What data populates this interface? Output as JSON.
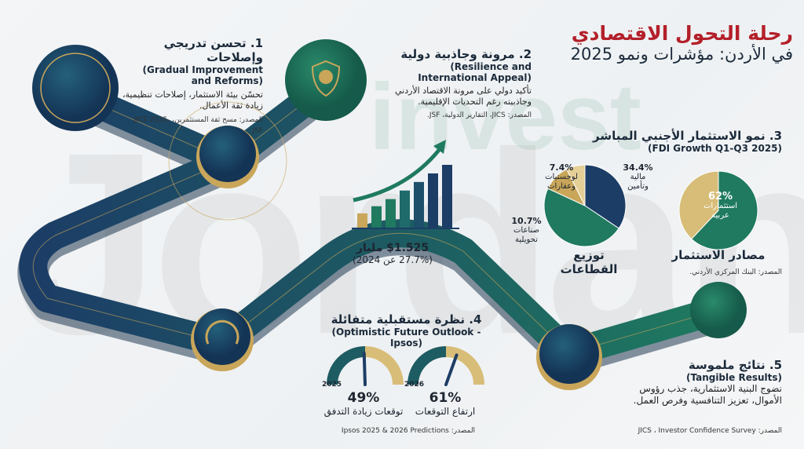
{
  "watermark": {
    "logo_text": "Jordan",
    "sub_text": "invest"
  },
  "title": {
    "line1": "رحلة التحول الاقتصادي",
    "line2": "في الأردن: مؤشرات ونمو 2025"
  },
  "colors": {
    "navy": "#1c3d66",
    "green": "#1f7a5f",
    "gold": "#c9a65a",
    "light_gold": "#e4cf96",
    "red": "#b3202a"
  },
  "steps": [
    {
      "heading": "1. تحسن تدريجي وإصلاحات",
      "english": "(Gradual Improvement and Reforms)",
      "body": "تحسّن بيئة الاستثمار، إصلاحات تنظيمية، زيادة ثقة الأعمال.",
      "source": "المصدر: مسح ثقة المستثمرين، JICS 2025، JSF.",
      "icon": "gears-arrow-icon"
    },
    {
      "heading": "2. مرونة وجاذبية دولية",
      "english": "(Resilience and International Appeal)",
      "body": "تأكيد دولي على مرونة الاقتصاد الأردني وجاذبيته رغم التحديات الإقليمية.",
      "source": "المصدر: JICS، التقارير الدولية، JSF.",
      "icon": "shield-globe-icon"
    },
    {
      "heading": "3. نمو الاستثمار الأجنبي المباشر",
      "english": "(FDI Growth Q1-Q3 2025)",
      "source": "المصدر: البنك المركزي الأردني."
    },
    {
      "heading": "4. نظرة مستقبلية متفائلة",
      "english": "(Optimistic Future Outlook - Ipsos)",
      "source": "المصدر: Ipsos 2025 & 2026 Predictions"
    },
    {
      "heading": "5. نتائج ملموسة",
      "english": "(Tangible Results)",
      "body": "نضوج البنية الاستثمارية، جذب رؤوس الأموال، تعزيز التنافسية وفرص العمل.",
      "source": "المصدر: JICS ، Investor Confidence Survey"
    }
  ],
  "fdi_center": {
    "value": "$1.525 مليار",
    "change": "(27.7% عن 2024)"
  },
  "chart_data": [
    {
      "type": "pie",
      "title": "توزيع القطاعات",
      "slices": [
        {
          "label": "مالية وتأمين",
          "value": 34.4,
          "display": "34.4%",
          "color": "#1c3d66"
        },
        {
          "label": "",
          "value": 47.5,
          "display": "",
          "color": "#1f7a5f"
        },
        {
          "label": "صناعات تحويلية",
          "value": 10.7,
          "display": "10.7%",
          "color": "#c9a65a"
        },
        {
          "label": "لوجستيات وعقارات",
          "value": 7.4,
          "display": "7.4%",
          "color": "#e4cf96"
        }
      ]
    },
    {
      "type": "pie",
      "title": "مصادر الاستثمار",
      "slices": [
        {
          "label": "استثمارات عربية",
          "value": 62,
          "display": "62%",
          "color": "#1f7a5f"
        },
        {
          "label": "",
          "value": 38,
          "display": "",
          "color": "#d8bd78"
        }
      ]
    }
  ],
  "gauges": [
    {
      "year": "2025",
      "value": 49,
      "display": "49%",
      "label": "توقعات زيادة التدفق"
    },
    {
      "year": "2026",
      "value": 61,
      "display": "61%",
      "label": "ارتفاع التوقعات"
    }
  ],
  "bars_icon": [
    1,
    1.5,
    2,
    2.6,
    3.2,
    3.8,
    4.4
  ]
}
